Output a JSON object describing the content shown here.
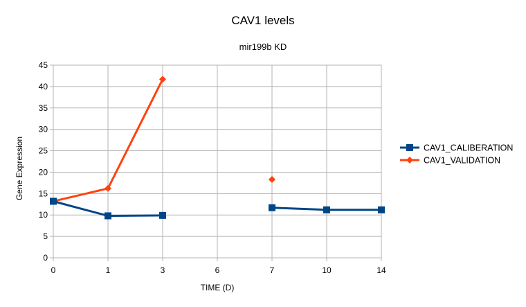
{
  "chart_data": {
    "type": "line",
    "title": "CAV1 levels",
    "subtitle": "mir199b KD",
    "xlabel": "TIME (D)",
    "ylabel": "Gene Expression",
    "categories": [
      "0",
      "1",
      "3",
      "6",
      "7",
      "10",
      "14"
    ],
    "ylim": [
      0,
      45
    ],
    "yticks": [
      0,
      5,
      10,
      15,
      20,
      25,
      30,
      35,
      40,
      45
    ],
    "grid": true,
    "legend": "right",
    "series": [
      {
        "name": "CAV1_CALIBERATION",
        "color": "#004586",
        "marker": "square",
        "values": [
          13.2,
          9.8,
          9.9,
          null,
          11.7,
          11.2,
          11.2
        ]
      },
      {
        "name": "CAV1_VALIDATION",
        "color": "#ff420e",
        "marker": "diamond",
        "values": [
          13.2,
          16.2,
          41.7,
          null,
          18.3,
          null,
          null
        ]
      }
    ]
  }
}
